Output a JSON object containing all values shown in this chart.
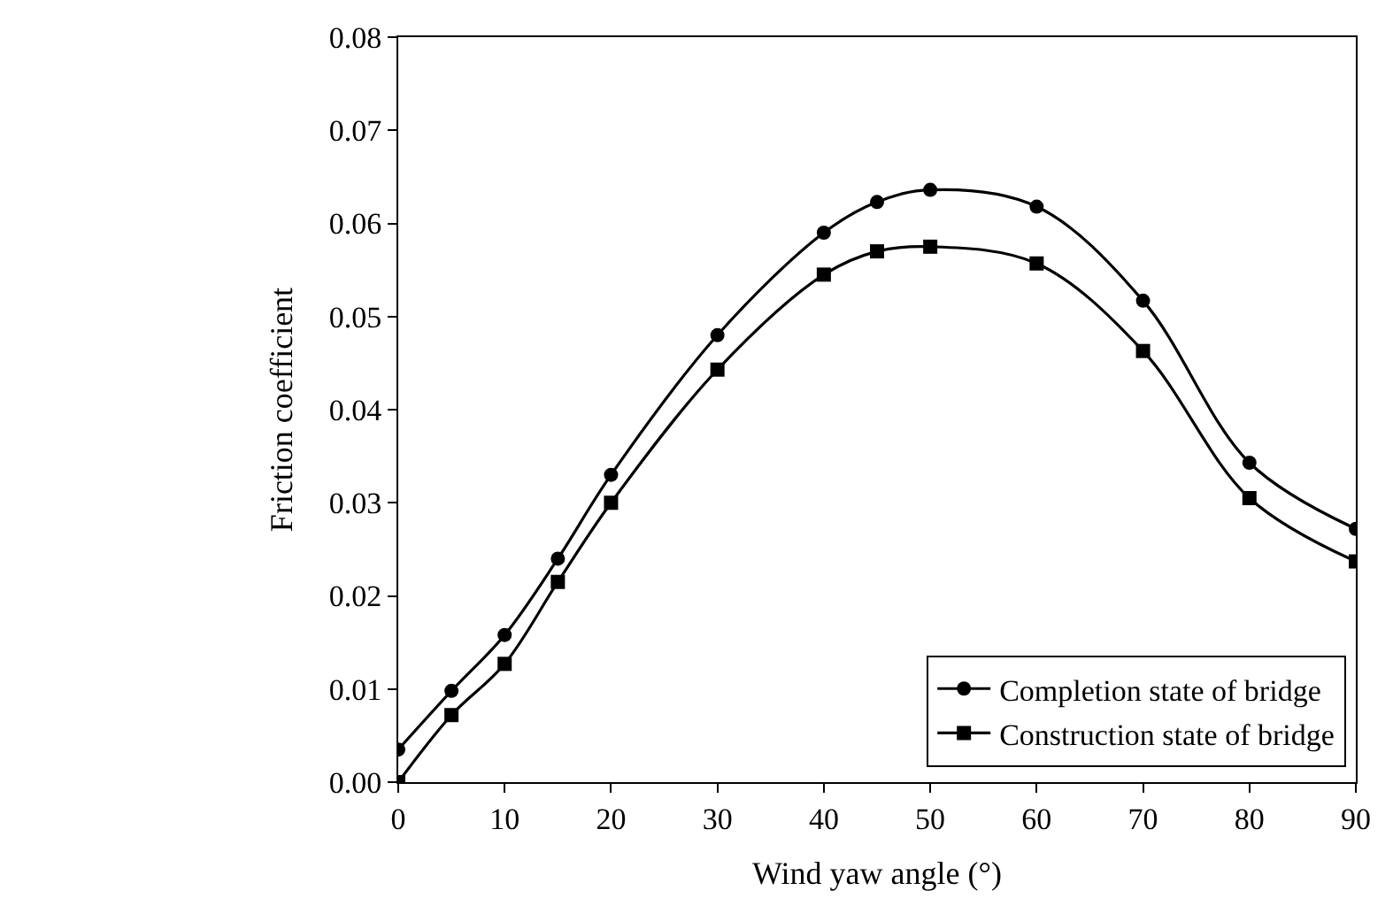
{
  "chart_data": {
    "type": "line",
    "xlabel": "Wind yaw angle (°)",
    "ylabel": "Friction coefficient",
    "x": [
      0,
      5,
      10,
      15,
      20,
      30,
      40,
      45,
      50,
      60,
      70,
      80,
      90
    ],
    "series": [
      {
        "name": "Completion state of bridge",
        "color": "#000000",
        "marker": "circle",
        "values": [
          0.0035,
          0.0098,
          0.0158,
          0.024,
          0.033,
          0.048,
          0.059,
          0.0623,
          0.0636,
          0.0618,
          0.0517,
          0.0343,
          0.0272
        ]
      },
      {
        "name": "Construction state of bridge",
        "color": "#000000",
        "marker": "square",
        "values": [
          0.0,
          0.0072,
          0.0127,
          0.0215,
          0.03,
          0.0443,
          0.0545,
          0.057,
          0.0575,
          0.0557,
          0.0463,
          0.0305,
          0.0237
        ]
      }
    ],
    "xlim": [
      0,
      90
    ],
    "xticks": [
      0,
      10,
      20,
      30,
      40,
      50,
      60,
      70,
      80,
      90
    ],
    "ylim": [
      0,
      0.08
    ],
    "yticks": [
      {
        "value": 0,
        "label": "0.00"
      },
      {
        "value": 0.01,
        "label": "0.01"
      },
      {
        "value": 0.02,
        "label": "0.02"
      },
      {
        "value": 0.03,
        "label": "0.03"
      },
      {
        "value": 0.04,
        "label": "0.04"
      },
      {
        "value": 0.05,
        "label": "0.05"
      },
      {
        "value": 0.06,
        "label": "0.06"
      },
      {
        "value": 0.07,
        "label": "0.07"
      },
      {
        "value": 0.08,
        "label": "0.08"
      }
    ],
    "legend": "bottom right",
    "line_style": "solid"
  }
}
